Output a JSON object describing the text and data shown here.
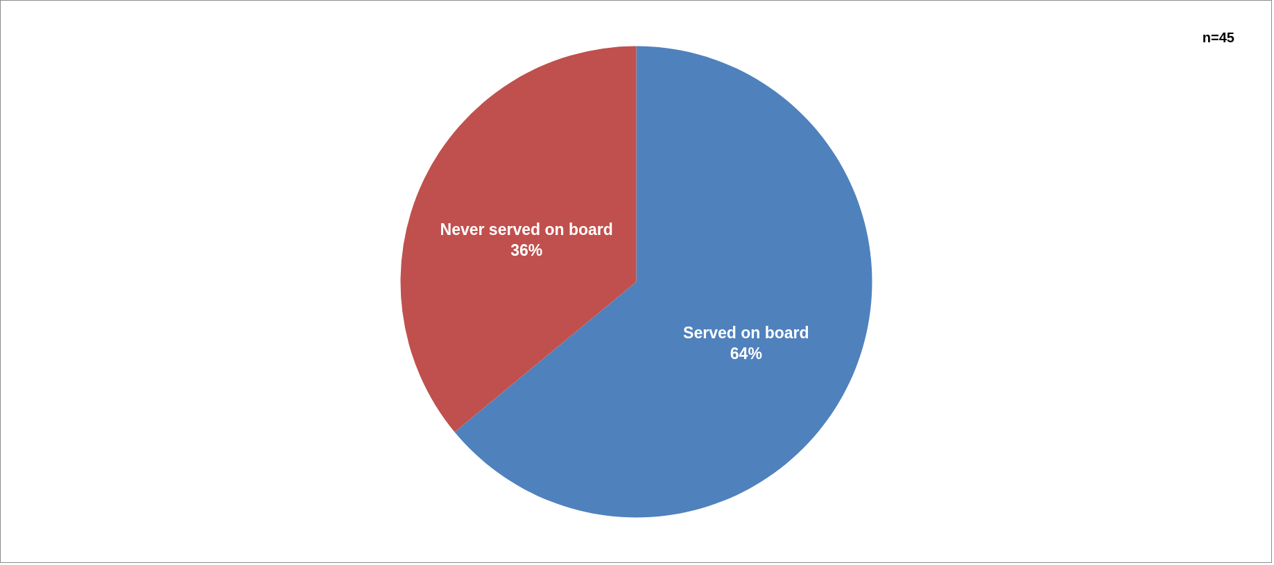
{
  "chart_data": {
    "type": "pie",
    "categories": [
      "Served on board",
      "Never served on board"
    ],
    "values": [
      64,
      36
    ],
    "value_labels": [
      "64%",
      "36%"
    ],
    "colors": [
      "#4f81bd",
      "#c0504d"
    ],
    "annotations": [
      "n=45"
    ]
  }
}
